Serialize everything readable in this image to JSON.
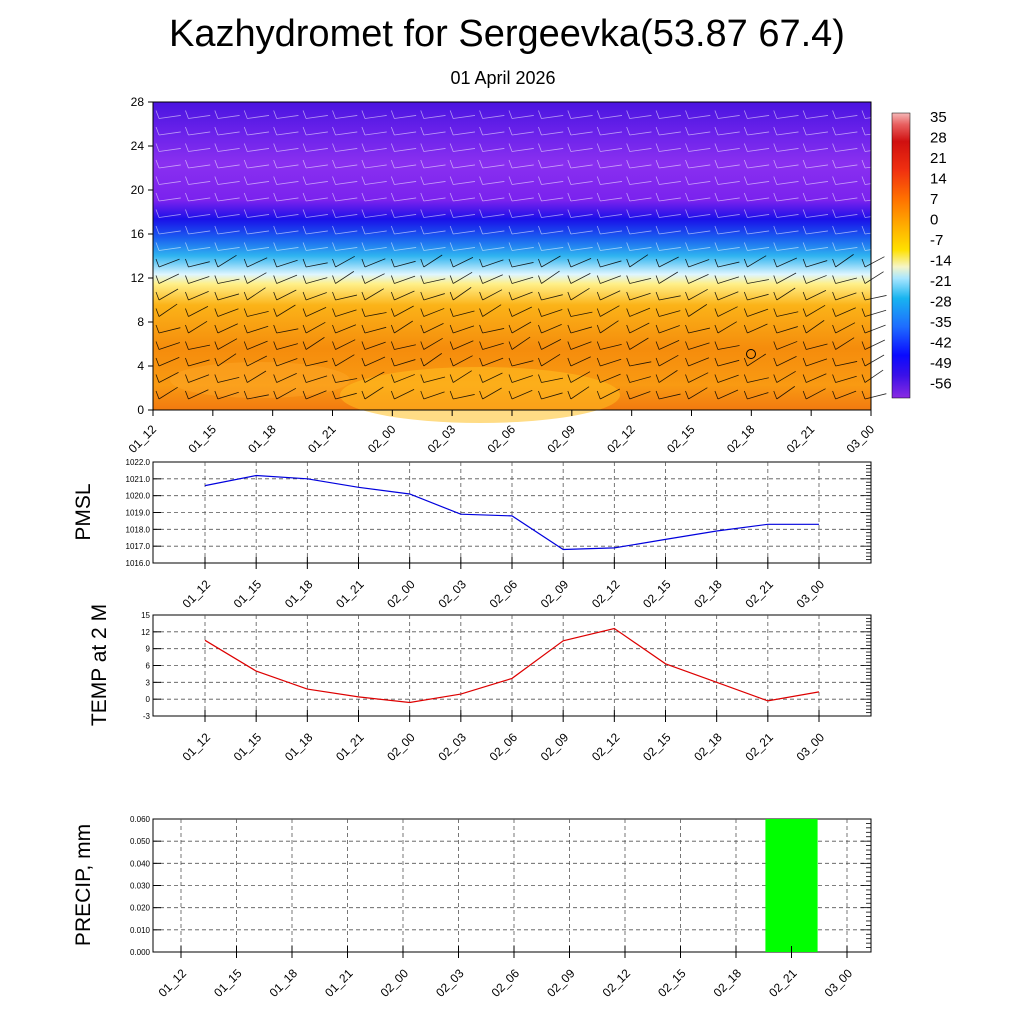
{
  "title": "Kazhydromet for Sergeevka(53.87 67.4)",
  "subtitle": "01 April 2026",
  "time_labels": [
    "01_12",
    "01_15",
    "01_18",
    "01_21",
    "02_00",
    "02_03",
    "02_06",
    "02_09",
    "02_12",
    "02_15",
    "02_18",
    "02_21",
    "03_00"
  ],
  "colors": {
    "pmsl_line": "#0000dd",
    "temp_line": "#dd0000",
    "precip_bar": "#00ff00"
  },
  "chart_data": [
    {
      "type": "heatmap",
      "name": "cross-section",
      "y_ticks": [
        "0",
        "4",
        "8",
        "12",
        "16",
        "20",
        "24",
        "28"
      ],
      "ylim": [
        0,
        28
      ],
      "colorbar_ticks": [
        "35",
        "28",
        "21",
        "14",
        "7",
        "0",
        "-7",
        "-14",
        "-21",
        "-28",
        "-35",
        "-42",
        "-49",
        "-56"
      ],
      "colorbar_range": [
        -60,
        38
      ]
    },
    {
      "type": "line",
      "ylabel": "PMSL",
      "y_ticks": [
        "1016.0",
        "1017.0",
        "1018.0",
        "1019.0",
        "1020.0",
        "1021.0",
        "1022.0"
      ],
      "ylim": [
        1016,
        1022
      ],
      "values": [
        1020.6,
        1021.2,
        1021.0,
        1020.5,
        1020.1,
        1018.9,
        1018.8,
        1016.8,
        1016.9,
        1017.4,
        1017.9,
        1018.3,
        1018.3
      ]
    },
    {
      "type": "line",
      "ylabel": "TEMP at 2 M",
      "y_ticks": [
        "-3",
        "0",
        "3",
        "6",
        "9",
        "12",
        "15"
      ],
      "ylim": [
        -3,
        15
      ],
      "values": [
        10.5,
        5.0,
        1.8,
        0.4,
        -0.6,
        0.9,
        3.7,
        10.4,
        12.6,
        6.3,
        3.0,
        -0.3,
        1.3
      ]
    },
    {
      "type": "bar",
      "ylabel": "PRECIP, mm",
      "y_ticks": [
        "0.000",
        "0.010",
        "0.020",
        "0.030",
        "0.040",
        "0.050",
        "0.060"
      ],
      "ylim": [
        0,
        0.06
      ],
      "values": [
        0,
        0,
        0,
        0,
        0,
        0,
        0,
        0,
        0,
        0,
        0,
        0.06,
        0
      ]
    }
  ]
}
